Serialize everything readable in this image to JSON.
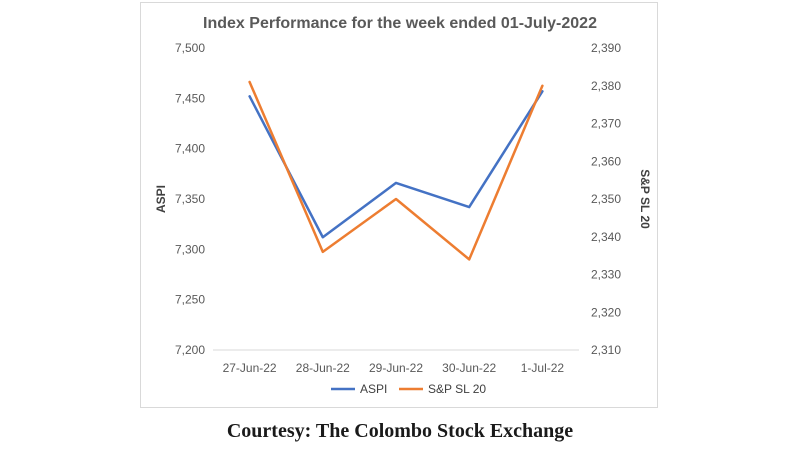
{
  "chart_data": {
    "type": "line",
    "title": "Index Performance for the week ended 01-July-2022",
    "categories": [
      "27-Jun-22",
      "28-Jun-22",
      "29-Jun-22",
      "30-Jun-22",
      "1-Jul-22"
    ],
    "series": [
      {
        "name": "ASPI",
        "axis": "left",
        "color": "#4472C4",
        "values": [
          7452,
          7312,
          7366,
          7342,
          7457
        ]
      },
      {
        "name": "S&P SL 20",
        "axis": "right",
        "color": "#ED7D31",
        "values": [
          2381,
          2336,
          2350,
          2334,
          2380
        ]
      }
    ],
    "ylabel_left": "ASPI",
    "ylabel_right": "S&P SL 20",
    "ylim_left": [
      7200,
      7500
    ],
    "ylim_right": [
      2310,
      2390
    ],
    "yticks_left": [
      "7,200",
      "7,250",
      "7,300",
      "7,350",
      "7,400",
      "7,450",
      "7,500"
    ],
    "yticks_right": [
      "2,310",
      "2,320",
      "2,330",
      "2,340",
      "2,350",
      "2,360",
      "2,370",
      "2,380",
      "2,390"
    ],
    "grid": false,
    "legend": "bottom"
  },
  "caption": "Courtesy: The Colombo Stock Exchange"
}
